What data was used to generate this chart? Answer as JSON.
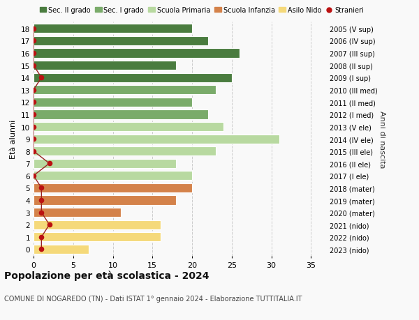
{
  "ages": [
    18,
    17,
    16,
    15,
    14,
    13,
    12,
    11,
    10,
    9,
    8,
    7,
    6,
    5,
    4,
    3,
    2,
    1,
    0
  ],
  "bar_values": [
    20,
    22,
    26,
    18,
    25,
    23,
    20,
    22,
    24,
    31,
    23,
    18,
    20,
    20,
    18,
    11,
    16,
    16,
    7
  ],
  "stranieri_values": [
    0,
    0,
    0,
    0,
    1,
    0,
    0,
    0,
    0,
    0,
    0,
    2,
    0,
    1,
    1,
    1,
    2,
    1,
    1
  ],
  "right_labels": [
    "2005 (V sup)",
    "2006 (IV sup)",
    "2007 (III sup)",
    "2008 (II sup)",
    "2009 (I sup)",
    "2010 (III med)",
    "2011 (II med)",
    "2012 (I med)",
    "2013 (V ele)",
    "2014 (IV ele)",
    "2015 (III ele)",
    "2016 (II ele)",
    "2017 (I ele)",
    "2018 (mater)",
    "2019 (mater)",
    "2020 (mater)",
    "2021 (nido)",
    "2022 (nido)",
    "2023 (nido)"
  ],
  "bar_colors": [
    "#4a7c3f",
    "#4a7c3f",
    "#4a7c3f",
    "#4a7c3f",
    "#4a7c3f",
    "#7aab6a",
    "#7aab6a",
    "#7aab6a",
    "#b8d9a0",
    "#b8d9a0",
    "#b8d9a0",
    "#b8d9a0",
    "#b8d9a0",
    "#d4824a",
    "#d4824a",
    "#d4824a",
    "#f5d97a",
    "#f5d97a",
    "#f5d97a"
  ],
  "legend_items": [
    {
      "label": "Sec. II grado",
      "color": "#4a7c3f"
    },
    {
      "label": "Sec. I grado",
      "color": "#7aab6a"
    },
    {
      "label": "Scuola Primaria",
      "color": "#b8d9a0"
    },
    {
      "label": "Scuola Infanzia",
      "color": "#d4824a"
    },
    {
      "label": "Asilo Nido",
      "color": "#f5d97a"
    },
    {
      "label": "Stranieri",
      "color": "#bb1111"
    }
  ],
  "ylabel": "Età alunni",
  "right_ylabel": "Anni di nascita",
  "title": "Popolazione per età scolastica - 2024",
  "subtitle": "COMUNE DI NOGAREDO (TN) - Dati ISTAT 1° gennaio 2024 - Elaborazione TUTTITALIA.IT",
  "xlim": [
    0,
    37
  ],
  "background_color": "#f9f9f9",
  "grid_color": "#cccccc",
  "stranieri_color": "#bb1111",
  "stranieri_line_color": "#992222"
}
